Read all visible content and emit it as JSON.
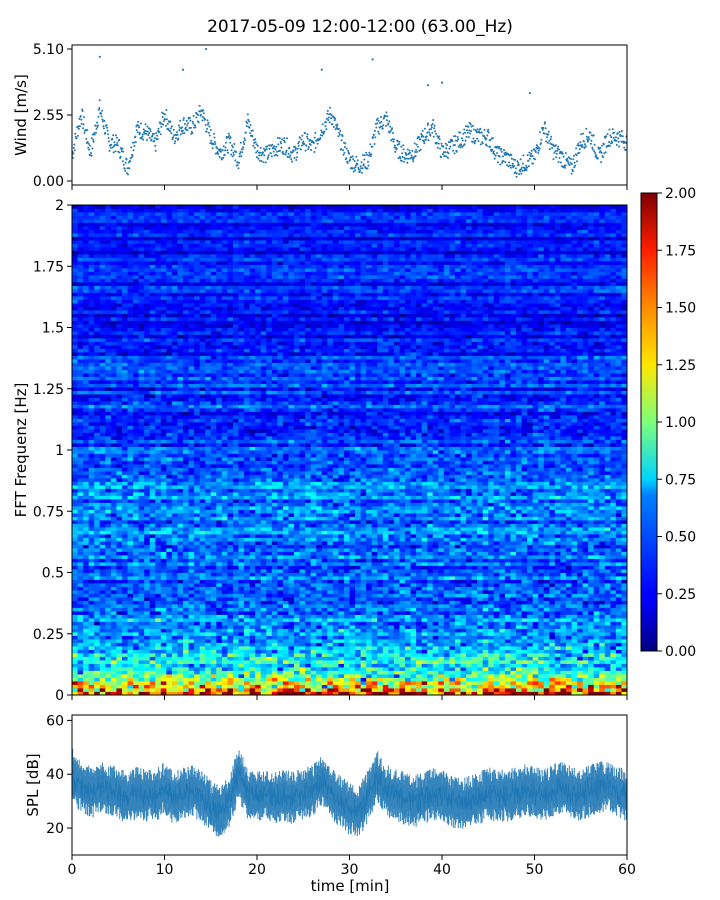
{
  "title": "2017-05-09 12:00-12:00 (63.00_Hz)",
  "colors": {
    "wind": "#1f77b4",
    "spl": "#1f77b4",
    "axis": "#000000"
  },
  "chart_data": [
    {
      "type": "scatter",
      "name": "wind",
      "ylabel": "Wind [m/s]",
      "xlim": [
        0,
        60
      ],
      "ylim": [
        0,
        5.1
      ],
      "yticks": [
        "0.00",
        "2.55",
        "5.10"
      ],
      "ytick_values": [
        0,
        2.55,
        5.1
      ],
      "x": [
        0,
        1,
        2,
        3,
        4,
        5,
        6,
        7,
        8,
        9,
        10,
        11,
        12,
        13,
        14,
        15,
        16,
        17,
        18,
        19,
        20,
        21,
        22,
        23,
        24,
        25,
        26,
        27,
        28,
        29,
        30,
        31,
        32,
        33,
        34,
        35,
        36,
        37,
        38,
        39,
        40,
        41,
        42,
        43,
        44,
        45,
        46,
        47,
        48,
        49,
        50,
        51,
        52,
        53,
        54,
        55,
        56,
        57,
        58,
        59,
        60
      ],
      "values": [
        1.0,
        2.6,
        1.1,
        2.8,
        1.5,
        1.4,
        0.5,
        2.0,
        1.9,
        1.4,
        2.6,
        1.7,
        2.2,
        2.1,
        2.7,
        1.7,
        1.1,
        1.5,
        0.8,
        2.3,
        1.2,
        1.0,
        1.3,
        1.4,
        1.0,
        1.6,
        1.3,
        2.0,
        2.6,
        1.6,
        0.8,
        0.6,
        0.8,
        2.1,
        2.4,
        1.3,
        1.0,
        1.1,
        1.7,
        2.1,
        1.1,
        1.3,
        1.6,
        1.9,
        1.7,
        1.7,
        1.0,
        0.9,
        0.5,
        0.7,
        0.9,
        2.1,
        1.2,
        0.9,
        0.5,
        1.5,
        1.8,
        0.9,
        1.7,
        1.7,
        1.5
      ],
      "spikes": [
        [
          3,
          4.8
        ],
        [
          12,
          4.3
        ],
        [
          14.5,
          5.1
        ],
        [
          27,
          4.3
        ],
        [
          32.5,
          4.7
        ],
        [
          38.5,
          3.7
        ],
        [
          40,
          3.8
        ],
        [
          49.5,
          3.4
        ]
      ]
    },
    {
      "type": "heatmap",
      "name": "spectrogram",
      "ylabel": "FFT Frequenz [Hz]",
      "xlim": [
        0,
        60
      ],
      "ylim": [
        0,
        2
      ],
      "yticks": [
        "0",
        "0.25",
        "0.5",
        "0.75",
        "1",
        "1.25",
        "1.5",
        "1.75",
        "2"
      ],
      "ytick_values": [
        0,
        0.25,
        0.5,
        0.75,
        1,
        1.25,
        1.5,
        1.75,
        2
      ],
      "colorbar": {
        "range": [
          0,
          2
        ],
        "ticks": [
          "0.00",
          "0.25",
          "0.50",
          "0.75",
          "1.00",
          "1.25",
          "1.50",
          "1.75",
          "2.00"
        ],
        "tick_values": [
          0,
          0.25,
          0.5,
          0.75,
          1,
          1.25,
          1.5,
          1.75,
          2
        ],
        "colormap": "jet"
      },
      "level_by_frequency": [
        {
          "f": 0.0,
          "v": 1.7
        },
        {
          "f": 0.03,
          "v": 1.3
        },
        {
          "f": 0.1,
          "v": 0.8
        },
        {
          "f": 0.25,
          "v": 0.55
        },
        {
          "f": 0.5,
          "v": 0.45
        },
        {
          "f": 0.8,
          "v": 0.5
        },
        {
          "f": 1.0,
          "v": 0.38
        },
        {
          "f": 1.5,
          "v": 0.3
        },
        {
          "f": 2.0,
          "v": 0.25
        }
      ]
    },
    {
      "type": "line",
      "name": "spl",
      "xlabel": "time [min]",
      "ylabel": "SPL [dB]",
      "xlim": [
        0,
        60
      ],
      "ylim": [
        10,
        62
      ],
      "yticks": [
        "20",
        "40",
        "60"
      ],
      "ytick_values": [
        20,
        40,
        60
      ],
      "xticks": [
        "0",
        "10",
        "20",
        "30",
        "40",
        "50",
        "60"
      ],
      "xtick_values": [
        0,
        10,
        20,
        30,
        40,
        50,
        60
      ],
      "x": [
        0,
        1,
        2,
        3,
        4,
        5,
        6,
        7,
        8,
        9,
        10,
        11,
        12,
        13,
        14,
        15,
        16,
        17,
        18,
        19,
        20,
        21,
        22,
        23,
        24,
        25,
        26,
        27,
        28,
        29,
        30,
        31,
        32,
        33,
        34,
        35,
        36,
        37,
        38,
        39,
        40,
        41,
        42,
        43,
        44,
        45,
        46,
        47,
        48,
        49,
        50,
        51,
        52,
        53,
        54,
        55,
        56,
        57,
        58,
        59,
        60
      ],
      "values": [
        40,
        35,
        33,
        35,
        34,
        33,
        31,
        33,
        32,
        32,
        35,
        31,
        33,
        34,
        32,
        28,
        26,
        30,
        40,
        33,
        31,
        33,
        31,
        32,
        31,
        33,
        34,
        38,
        33,
        30,
        27,
        26,
        32,
        39,
        34,
        32,
        31,
        30,
        31,
        33,
        32,
        30,
        29,
        30,
        31,
        33,
        32,
        32,
        33,
        34,
        33,
        32,
        34,
        35,
        33,
        32,
        34,
        35,
        36,
        33,
        32
      ],
      "band": [
        -7,
        7
      ]
    }
  ]
}
